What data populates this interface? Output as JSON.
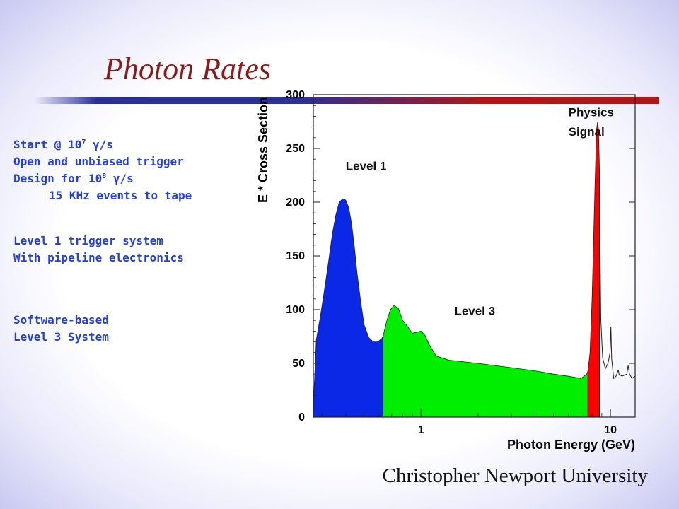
{
  "slide": {
    "title": "Photon Rates",
    "footer": "Christopher Newport University"
  },
  "bullets": {
    "line1_pre": "Start @ 10",
    "line1_exp": "7",
    "line1_post": " γ/s",
    "line2": "Open and unbiased trigger",
    "line3_pre": "Design for 10",
    "line3_exp": "8",
    "line3_post": " γ/s",
    "line4": "15 KHz events to tape",
    "line5": "Level 1 trigger system",
    "line6": "With pipeline electronics",
    "line7": "Software-based",
    "line8": "Level 3 System"
  },
  "colors": {
    "title": "#8b1a1a",
    "bullets": "#2440d8",
    "level1": "#0a28e6",
    "level3": "#00ee00",
    "physics": "#ff0000"
  },
  "chart_data": {
    "type": "area",
    "xlabel": "Photon Energy (GeV)",
    "ylabel": "E * Cross Section",
    "x_scale": "log",
    "xlim": [
      0.27,
      13.5
    ],
    "ylim": [
      0,
      300
    ],
    "x_ticks": [
      1,
      10
    ],
    "y_ticks": [
      0,
      50,
      100,
      150,
      200,
      250,
      300
    ],
    "grid": false,
    "annotations": [
      {
        "text": "Level 1",
        "x": 0.4,
        "y": 230
      },
      {
        "text": "Level 3",
        "x": 1.5,
        "y": 95
      },
      {
        "text": "Physics",
        "x": 6.0,
        "y": 280
      },
      {
        "text": "Signal",
        "x": 6.0,
        "y": 262
      }
    ],
    "series": [
      {
        "name": "Level 1",
        "points": [
          [
            0.27,
            0
          ],
          [
            0.27,
            10
          ],
          [
            0.28,
            72
          ],
          [
            0.295,
            95
          ],
          [
            0.31,
            120
          ],
          [
            0.325,
            145
          ],
          [
            0.34,
            170
          ],
          [
            0.355,
            188
          ],
          [
            0.37,
            200
          ],
          [
            0.385,
            203
          ],
          [
            0.4,
            202
          ],
          [
            0.415,
            195
          ],
          [
            0.43,
            180
          ],
          [
            0.445,
            158
          ],
          [
            0.46,
            133
          ],
          [
            0.48,
            108
          ],
          [
            0.5,
            86
          ],
          [
            0.53,
            74
          ],
          [
            0.56,
            70
          ],
          [
            0.59,
            70
          ],
          [
            0.62,
            73
          ],
          [
            0.63,
            75
          ],
          [
            0.63,
            0
          ]
        ]
      },
      {
        "name": "Level 3",
        "points": [
          [
            0.63,
            0
          ],
          [
            0.63,
            75
          ],
          [
            0.66,
            90
          ],
          [
            0.69,
            100
          ],
          [
            0.72,
            104
          ],
          [
            0.76,
            101
          ],
          [
            0.8,
            90
          ],
          [
            0.85,
            84
          ],
          [
            0.9,
            78
          ],
          [
            0.95,
            79
          ],
          [
            1.0,
            80
          ],
          [
            1.05,
            76
          ],
          [
            1.1,
            68
          ],
          [
            1.2,
            57
          ],
          [
            1.4,
            53
          ],
          [
            2.0,
            50
          ],
          [
            3.0,
            46
          ],
          [
            4.0,
            43
          ],
          [
            5.0,
            40
          ],
          [
            6.0,
            38
          ],
          [
            7.0,
            36
          ],
          [
            7.5,
            40
          ],
          [
            7.6,
            43
          ],
          [
            7.6,
            0
          ]
        ]
      },
      {
        "name": "Physics Signal",
        "points": [
          [
            7.6,
            0
          ],
          [
            7.6,
            43
          ],
          [
            7.8,
            60
          ],
          [
            8.0,
            110
          ],
          [
            8.3,
            220
          ],
          [
            8.45,
            268
          ],
          [
            8.55,
            275
          ],
          [
            8.65,
            268
          ],
          [
            8.75,
            230
          ],
          [
            8.75,
            0
          ]
        ]
      }
    ],
    "tail_line": [
      [
        8.75,
        210
      ],
      [
        8.9,
        90
      ],
      [
        9.1,
        55
      ],
      [
        9.4,
        45
      ],
      [
        9.7,
        50
      ],
      [
        9.95,
        60
      ],
      [
        10.05,
        84
      ],
      [
        10.15,
        54
      ],
      [
        10.4,
        36
      ],
      [
        10.7,
        38
      ],
      [
        11.0,
        44
      ],
      [
        11.1,
        40
      ],
      [
        11.5,
        38
      ],
      [
        12.2,
        40
      ],
      [
        12.4,
        48
      ],
      [
        12.6,
        40
      ],
      [
        13.0,
        36
      ],
      [
        13.5,
        38
      ]
    ]
  }
}
